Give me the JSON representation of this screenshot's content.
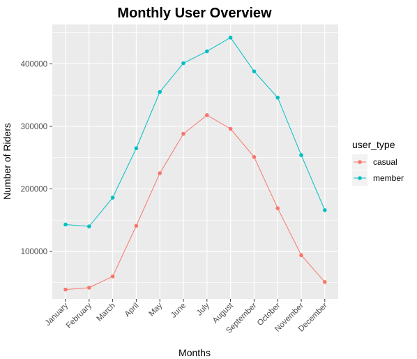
{
  "chart_data": {
    "type": "line",
    "title": "Monthly User Overview",
    "xlabel": "Months",
    "ylabel": "Number of Riders",
    "categories": [
      "January",
      "February",
      "March",
      "April",
      "May",
      "June",
      "July",
      "August",
      "September",
      "October",
      "November",
      "December"
    ],
    "series": [
      {
        "name": "casual",
        "color": "#F8766D",
        "values": [
          39000,
          42000,
          60000,
          141000,
          225000,
          288000,
          318000,
          296000,
          251000,
          169000,
          94000,
          51000
        ]
      },
      {
        "name": "member",
        "color": "#00BFC4",
        "values": [
          143000,
          140000,
          186000,
          265000,
          355000,
          401000,
          420000,
          442000,
          388000,
          346000,
          254000,
          166000
        ]
      }
    ],
    "ylim": [
      24000,
      463000
    ],
    "yticks": [
      100000,
      200000,
      300000,
      400000
    ],
    "ytick_labels": [
      "100000",
      "200000",
      "300000",
      "400000"
    ],
    "grid": true,
    "legend": {
      "title": "user_type",
      "position": "right"
    }
  }
}
